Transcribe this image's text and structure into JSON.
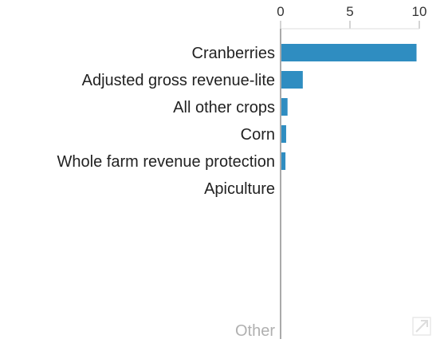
{
  "chart_data": {
    "type": "bar",
    "orientation": "horizontal",
    "title": "",
    "xlabel": "",
    "ylabel": "",
    "categories": [
      "Cranberries",
      "Adjusted gross revenue-lite",
      "All other crops",
      "Corn",
      "Whole farm revenue protection",
      "Apiculture"
    ],
    "values": [
      9.8,
      1.6,
      0.5,
      0.4,
      0.35,
      0
    ],
    "xlim": [
      0,
      10
    ],
    "xticks": [
      "0",
      "5",
      "10"
    ],
    "grid": false,
    "other_label": "Other",
    "bar_color": "#2f8dc1",
    "axis_color": "#aaaaaa"
  },
  "icons": {
    "expand": "expand-icon"
  }
}
